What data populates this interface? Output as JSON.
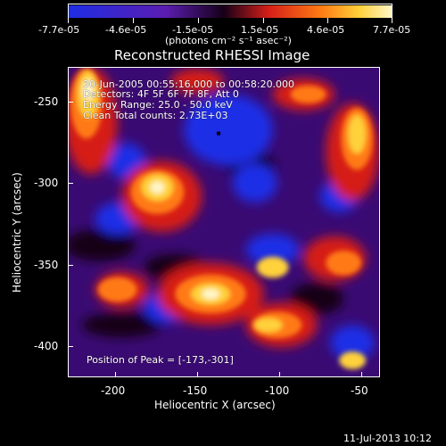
{
  "colorbar": {
    "ticks": [
      "-7.7e-05",
      "-4.6e-05",
      "-1.5e-05",
      "1.5e-05",
      "4.6e-05",
      "7.7e-05"
    ],
    "label": "(photons cm⁻² s⁻¹ asec⁻²)"
  },
  "plot": {
    "title": "Reconstructed RHESSI Image",
    "info_lines": [
      "30-Jun-2005 00:55:16.000 to 00:58:20.000",
      "Detectors: 4F 5F 6F 7F 8F, Att 0",
      "Energy Range: 25.0 - 50.0 keV",
      "Clean     Total counts: 2.73E+03"
    ],
    "peak_text": "Position of Peak = [-173,-301]",
    "x_label": "Heliocentric X (arcsec)",
    "y_label": "Heliocentric Y (arcsec)",
    "x_ticks": [
      "-200",
      "-150",
      "-100",
      "-50"
    ],
    "y_ticks": [
      "-250",
      "-300",
      "-350",
      "-400"
    ],
    "colors": {
      "background": "#3a0a73",
      "blue": "#1f2de6",
      "purple": "#5a1db0",
      "dark": "#160018",
      "red": "#d61f18",
      "orange": "#ff7a14",
      "yellow": "#ffd13a",
      "white": "#fff6c8"
    }
  },
  "footer": {
    "date": "11-Jul-2013 10:12"
  }
}
